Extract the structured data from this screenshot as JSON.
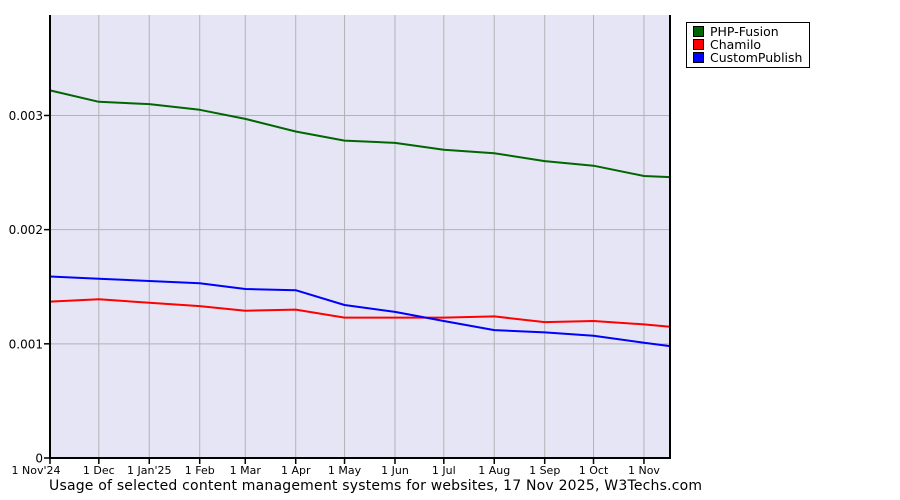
{
  "caption": "Usage of selected content management systems for websites, 17 Nov 2025, W3Techs.com",
  "axes": {
    "y_ticks": [
      {
        "label": "0.003",
        "value": 0.003
      },
      {
        "label": "0.002",
        "value": 0.002
      },
      {
        "label": "0.001",
        "value": 0.001
      },
      {
        "label": "0",
        "value": 0
      }
    ],
    "x_ticks": [
      {
        "label": "1 Nov'24",
        "day": 0
      },
      {
        "label": "1 Dec",
        "day": 30
      },
      {
        "label": "1 Jan'25",
        "day": 61
      },
      {
        "label": "1 Feb",
        "day": 92
      },
      {
        "label": "1 Mar",
        "day": 120
      },
      {
        "label": "1 Apr",
        "day": 151
      },
      {
        "label": "1 May",
        "day": 181
      },
      {
        "label": "1 Jun",
        "day": 212
      },
      {
        "label": "1 Jul",
        "day": 242
      },
      {
        "label": "1 Aug",
        "day": 273
      },
      {
        "label": "1 Sep",
        "day": 304
      },
      {
        "label": "1 Oct",
        "day": 334
      },
      {
        "label": "1 Nov",
        "day": 365
      }
    ]
  },
  "chart_data": {
    "type": "line",
    "title": "Usage of selected content management systems for websites, 17 Nov 2025, W3Techs.com",
    "x": [
      "2024-11-01",
      "2024-12-01",
      "2025-01-01",
      "2025-02-01",
      "2025-03-01",
      "2025-04-01",
      "2025-05-01",
      "2025-06-01",
      "2025-07-01",
      "2025-08-01",
      "2025-09-01",
      "2025-10-01",
      "2025-11-01",
      "2025-11-17"
    ],
    "x_days": [
      0,
      30,
      61,
      92,
      120,
      151,
      181,
      212,
      242,
      273,
      304,
      334,
      365,
      381
    ],
    "series": [
      {
        "name": "PHP-Fusion",
        "color": "#006600",
        "values": [
          0.00322,
          0.00312,
          0.0031,
          0.00305,
          0.00297,
          0.00286,
          0.00278,
          0.00276,
          0.0027,
          0.00267,
          0.0026,
          0.00256,
          0.00247,
          0.00246
        ]
      },
      {
        "name": "Chamilo",
        "color": "#ff0000",
        "values": [
          0.00137,
          0.00139,
          0.00136,
          0.00133,
          0.00129,
          0.0013,
          0.00123,
          0.00123,
          0.00123,
          0.00124,
          0.00119,
          0.0012,
          0.00117,
          0.00115
        ]
      },
      {
        "name": "CustomPublish",
        "color": "#0000ff",
        "values": [
          0.00159,
          0.00157,
          0.00155,
          0.00153,
          0.00148,
          0.00147,
          0.00134,
          0.00128,
          0.0012,
          0.00112,
          0.0011,
          0.00107,
          0.00101,
          0.00098
        ]
      }
    ],
    "ylim": [
      0,
      0.00388
    ],
    "y_gridlines": [
      0.001,
      0.002,
      0.003
    ],
    "grid": true,
    "legend_position": "top-right",
    "colors": {
      "plot_bg": "#e5e5f5",
      "grid": "#b3b3b3",
      "axis": "#000000"
    }
  }
}
